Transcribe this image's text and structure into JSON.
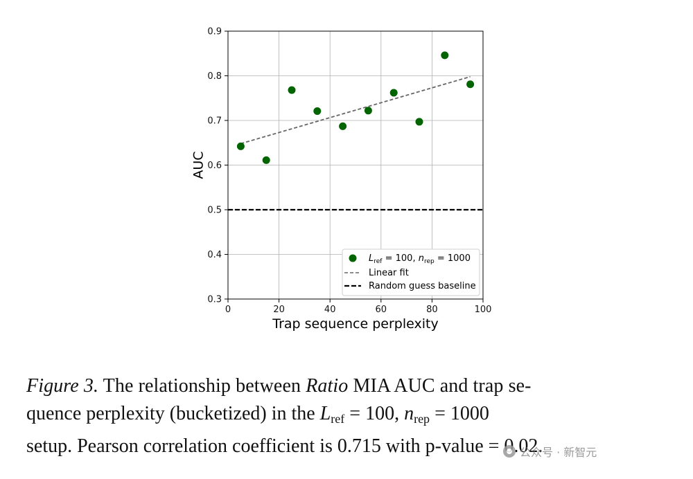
{
  "chart_data": {
    "type": "scatter",
    "xlabel": "Trap sequence perplexity",
    "ylabel": "AUC",
    "xlim": [
      0,
      100
    ],
    "ylim": [
      0.3,
      0.9
    ],
    "xticks": [
      "0",
      "20",
      "40",
      "60",
      "80",
      "100"
    ],
    "yticks": [
      "0.3",
      "0.4",
      "0.5",
      "0.6",
      "0.7",
      "0.8",
      "0.9"
    ],
    "grid": true,
    "legend_position": "lower-right",
    "series": [
      {
        "name": "L_ref = 100, n_rep = 1000",
        "kind": "scatter",
        "color": "#006400",
        "x": [
          5,
          15,
          25,
          35,
          45,
          55,
          65,
          75,
          85,
          95
        ],
        "y": [
          0.642,
          0.611,
          0.768,
          0.721,
          0.687,
          0.722,
          0.762,
          0.697,
          0.846,
          0.781
        ]
      },
      {
        "name": "Linear fit",
        "kind": "line",
        "style": "dashed",
        "color": "#666666",
        "x": [
          5,
          95
        ],
        "y": [
          0.648,
          0.798
        ]
      },
      {
        "name": "Random guess baseline",
        "kind": "hline",
        "style": "dashed",
        "color": "#000000",
        "y": 0.5
      }
    ],
    "legend": {
      "scatter_L": "L",
      "scatter_L_sub": "ref",
      "scatter_mid": " = 100, ",
      "scatter_n": "n",
      "scatter_n_sub": "rep",
      "scatter_end": " = 1000",
      "fit": "Linear fit",
      "baseline": "Random guess baseline"
    }
  },
  "caption": {
    "fig_label": "Figure 3.",
    "part1": " The relationship between ",
    "ratio": "Ratio",
    "part2": " MIA AUC and trap se-",
    "line2_a": "quence perplexity (bucketized) in the ",
    "L": "L",
    "L_sub": "ref",
    "eq1": " = 100, ",
    "n": "n",
    "n_sub": "rep",
    "eq2": " = 1000",
    "line3": "setup. Pearson correlation coefficient is 0.715 with p-value = 0.02."
  },
  "watermark": "公众号 · 新智元"
}
